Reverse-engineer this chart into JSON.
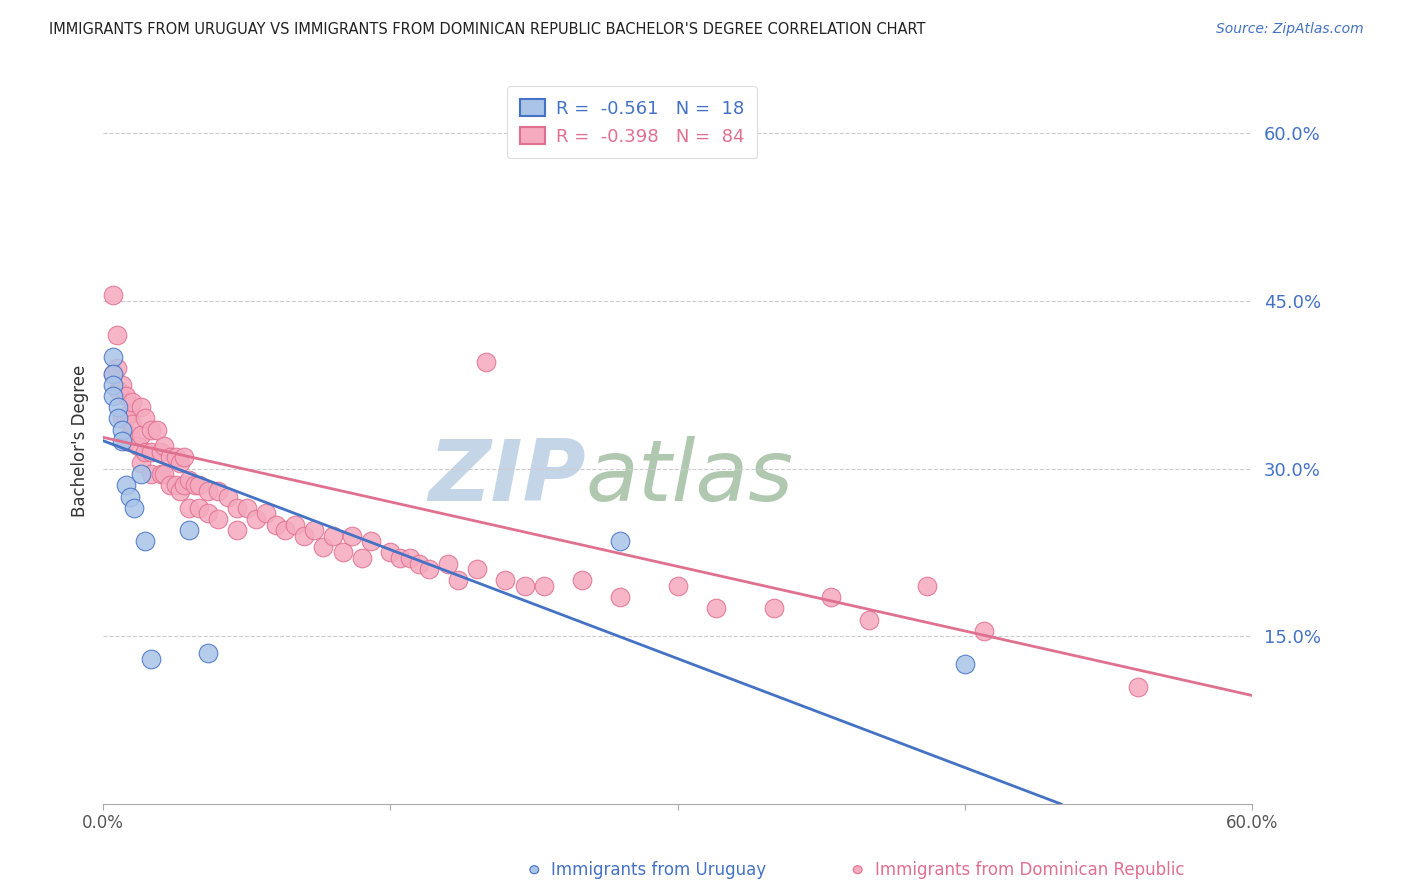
{
  "title": "IMMIGRANTS FROM URUGUAY VS IMMIGRANTS FROM DOMINICAN REPUBLIC BACHELOR'S DEGREE CORRELATION CHART",
  "source": "Source: ZipAtlas.com",
  "ylabel": "Bachelor's Degree",
  "right_yticks": [
    "60.0%",
    "45.0%",
    "30.0%",
    "15.0%"
  ],
  "right_ytick_vals": [
    0.6,
    0.45,
    0.3,
    0.15
  ],
  "color_uruguay": "#aac4e8",
  "color_dominican": "#f5aabe",
  "line_color_uruguay": "#4472c4",
  "line_color_dominican": "#e07090",
  "watermark_zip_color": "#c5d5e8",
  "watermark_atlas_color": "#b0c8b0",
  "title_color": "#222222",
  "right_axis_color": "#4472c4",
  "xmin": 0.0,
  "xmax": 0.6,
  "ymin": 0.0,
  "ymax": 0.65,
  "trendline_uruguay_x0": 0.0,
  "trendline_uruguay_x1": 0.5,
  "trendline_uruguay_y0": 0.325,
  "trendline_uruguay_y1": 0.0,
  "trendline_dominican_x0": 0.0,
  "trendline_dominican_x1": 0.6,
  "trendline_dominican_y0": 0.328,
  "trendline_dominican_y1": 0.097,
  "scatter_uruguay_x": [
    0.005,
    0.005,
    0.005,
    0.005,
    0.008,
    0.008,
    0.01,
    0.01,
    0.012,
    0.014,
    0.016,
    0.02,
    0.022,
    0.025,
    0.045,
    0.055,
    0.27,
    0.45
  ],
  "scatter_uruguay_y": [
    0.4,
    0.385,
    0.375,
    0.365,
    0.355,
    0.345,
    0.335,
    0.325,
    0.285,
    0.275,
    0.265,
    0.295,
    0.235,
    0.13,
    0.245,
    0.135,
    0.235,
    0.125
  ],
  "scatter_dominican_x": [
    0.005,
    0.005,
    0.007,
    0.007,
    0.008,
    0.01,
    0.01,
    0.012,
    0.012,
    0.012,
    0.014,
    0.014,
    0.015,
    0.015,
    0.018,
    0.02,
    0.02,
    0.02,
    0.022,
    0.022,
    0.025,
    0.025,
    0.025,
    0.028,
    0.03,
    0.03,
    0.032,
    0.032,
    0.035,
    0.035,
    0.038,
    0.038,
    0.04,
    0.04,
    0.042,
    0.042,
    0.045,
    0.045,
    0.048,
    0.05,
    0.05,
    0.055,
    0.055,
    0.06,
    0.06,
    0.065,
    0.07,
    0.07,
    0.075,
    0.08,
    0.085,
    0.09,
    0.095,
    0.1,
    0.105,
    0.11,
    0.115,
    0.12,
    0.125,
    0.13,
    0.135,
    0.14,
    0.15,
    0.155,
    0.16,
    0.165,
    0.17,
    0.18,
    0.185,
    0.195,
    0.2,
    0.21,
    0.22,
    0.23,
    0.25,
    0.27,
    0.3,
    0.32,
    0.35,
    0.38,
    0.4,
    0.43,
    0.46,
    0.54
  ],
  "scatter_dominican_y": [
    0.455,
    0.385,
    0.42,
    0.39,
    0.37,
    0.375,
    0.345,
    0.365,
    0.345,
    0.325,
    0.35,
    0.33,
    0.36,
    0.34,
    0.32,
    0.355,
    0.33,
    0.305,
    0.345,
    0.315,
    0.335,
    0.315,
    0.295,
    0.335,
    0.315,
    0.295,
    0.32,
    0.295,
    0.31,
    0.285,
    0.31,
    0.285,
    0.305,
    0.28,
    0.31,
    0.285,
    0.29,
    0.265,
    0.285,
    0.285,
    0.265,
    0.28,
    0.26,
    0.28,
    0.255,
    0.275,
    0.265,
    0.245,
    0.265,
    0.255,
    0.26,
    0.25,
    0.245,
    0.25,
    0.24,
    0.245,
    0.23,
    0.24,
    0.225,
    0.24,
    0.22,
    0.235,
    0.225,
    0.22,
    0.22,
    0.215,
    0.21,
    0.215,
    0.2,
    0.21,
    0.395,
    0.2,
    0.195,
    0.195,
    0.2,
    0.185,
    0.195,
    0.175,
    0.175,
    0.185,
    0.165,
    0.195,
    0.155,
    0.105
  ]
}
